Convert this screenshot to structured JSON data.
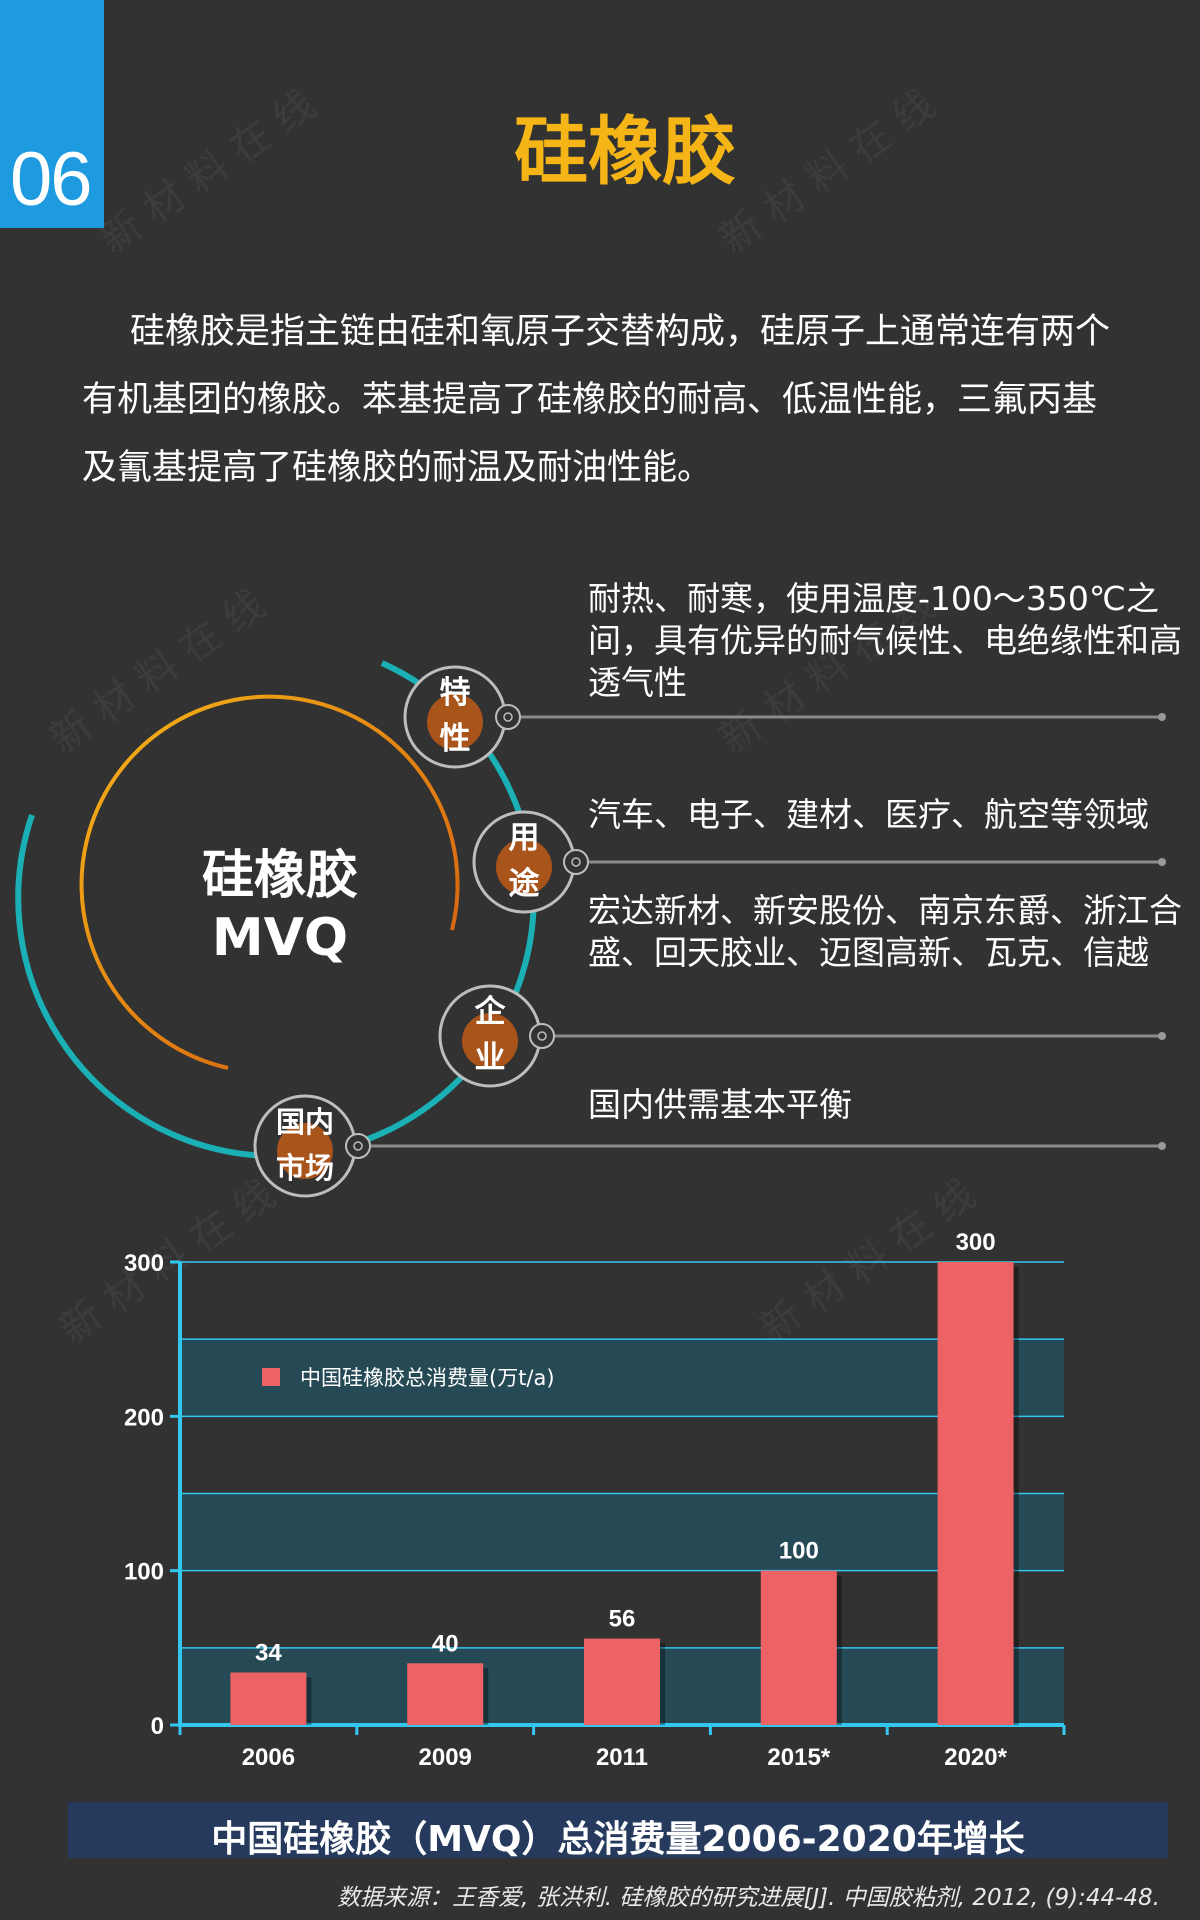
{
  "badge": {
    "number": "06"
  },
  "title": "硅橡胶",
  "intro": {
    "line1": "硅橡胶是指主链由硅和氧原子交替构成，硅原子上通常连有两个",
    "line2": "有机基团的橡胶。苯基提高了硅橡胶的耐高、低温性能，三氟丙基",
    "line3": "及氰基提高了硅橡胶的耐温及耐油性能。"
  },
  "diagram": {
    "center_line1": "硅橡胶",
    "center_line2": "MVQ",
    "nodes": [
      {
        "label_line1": "特",
        "label_line2": "性",
        "desc": "耐热、耐寒，使用温度-100～350℃之间，具有优异的耐气候性、电绝缘性和高透气性"
      },
      {
        "label_line1": "用",
        "label_line2": "途",
        "desc": "汽车、电子、建材、医疗、航空等领域"
      },
      {
        "label_line1": "企",
        "label_line2": "业",
        "desc": "宏达新材、新安股份、南京东爵、浙江合盛、回天胶业、迈图高新、瓦克、信越"
      },
      {
        "label_line1": "国内",
        "label_line2": "市场",
        "desc": "国内供需基本平衡"
      }
    ]
  },
  "chart_data": {
    "type": "bar",
    "categories": [
      "2006",
      "2009",
      "2011",
      "2015*",
      "2020*"
    ],
    "series": [
      {
        "name": "中国硅橡胶总消费量(万t/a)",
        "values": [
          34,
          40,
          56,
          100,
          300
        ],
        "color": "#ec6265"
      }
    ],
    "y_ticks": [
      "0",
      "100",
      "200",
      "300"
    ],
    "ylim": [
      0,
      300
    ],
    "grid": true,
    "legend_position": "top-left",
    "title": "中国硅橡胶（MVQ）总消费量2006-2020年增长"
  },
  "source": "数据来源：王香爱, 张洪利. 硅橡胶的研究进展[J]. 中国胶粘剂, 2012, (9):44-48.",
  "colors": {
    "background": "#323232",
    "accent_blue": "#1e9be0",
    "title_gold": "#f5b517",
    "teal": "#1ab0b5",
    "bar": "#ec6265",
    "plot_band": "#264a55",
    "axis_blue": "#33c7f0",
    "title_bar": "#253a5c"
  }
}
